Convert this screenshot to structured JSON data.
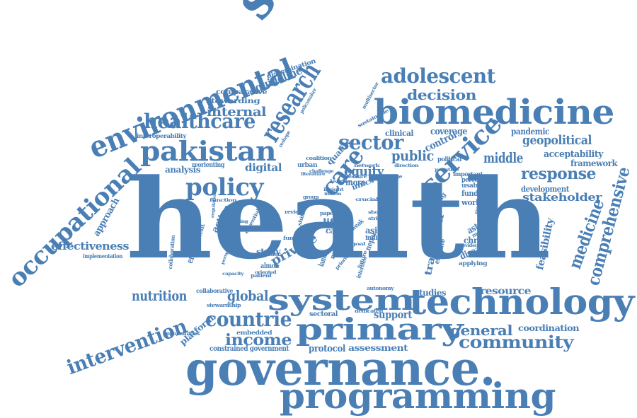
{
  "color": "#4a7fb5",
  "words": [
    {
      "text": "health"
    },
    {
      "text": "science"
    },
    {
      "text": "governance."
    },
    {
      "text": "programming"
    },
    {
      "text": "technology"
    },
    {
      "text": "biomedicine"
    },
    {
      "text": "system"
    },
    {
      "text": "primary"
    },
    {
      "text": "environmental"
    },
    {
      "text": "occupational"
    },
    {
      "text": "pakistan"
    },
    {
      "text": "healthcare"
    },
    {
      "text": "research"
    },
    {
      "text": "adolescent"
    },
    {
      "text": "decision"
    },
    {
      "text": "service"
    },
    {
      "text": "sector"
    },
    {
      "text": "policy"
    },
    {
      "text": "care"
    },
    {
      "text": "comprehensive"
    },
    {
      "text": "medicine"
    },
    {
      "text": "intervention"
    },
    {
      "text": "countrie"
    },
    {
      "text": "income"
    },
    {
      "text": "community"
    },
    {
      "text": "general"
    },
    {
      "text": "nutrition"
    },
    {
      "text": "global"
    },
    {
      "text": "response"
    },
    {
      "text": "middle"
    },
    {
      "text": "geopolitical"
    },
    {
      "text": "public"
    },
    {
      "text": "internal"
    },
    {
      "text": "guideline"
    },
    {
      "text": "effectiveness"
    },
    {
      "text": "approach"
    },
    {
      "text": "equity"
    },
    {
      "text": "digital"
    },
    {
      "text": "private"
    },
    {
      "text": "stakeholder"
    },
    {
      "text": "feasibility"
    },
    {
      "text": "transition"
    },
    {
      "text": "support"
    },
    {
      "text": "resource"
    },
    {
      "text": "coverage"
    },
    {
      "text": "control"
    },
    {
      "text": "pandemic"
    },
    {
      "text": "framework"
    },
    {
      "text": "acceptability"
    },
    {
      "text": "development"
    },
    {
      "text": "funding"
    },
    {
      "text": "worker"
    },
    {
      "text": "astana"
    },
    {
      "text": "chronic"
    },
    {
      "text": "disease"
    },
    {
      "text": "coordination"
    },
    {
      "text": "assessment"
    },
    {
      "text": "protocol"
    },
    {
      "text": "platform"
    },
    {
      "text": "analysis"
    },
    {
      "text": "engagement"
    },
    {
      "text": "action"
    },
    {
      "text": "stewarding"
    },
    {
      "text": "comparative"
    },
    {
      "text": "dissemination"
    },
    {
      "text": "interoperability"
    },
    {
      "text": "clinical"
    },
    {
      "text": "political"
    },
    {
      "text": "perceived"
    },
    {
      "text": "usability"
    },
    {
      "text": "important"
    },
    {
      "text": "study"
    },
    {
      "text": "almon"
    },
    {
      "text": "sectoral"
    },
    {
      "text": "studies"
    },
    {
      "text": "implementation"
    },
    {
      "text": "collaboration"
    },
    {
      "text": "collaborative"
    },
    {
      "text": "stewardship"
    },
    {
      "text": "opportunities"
    },
    {
      "text": "embedded"
    },
    {
      "text": "constrained government"
    },
    {
      "text": "reorienting"
    },
    {
      "text": "quality"
    },
    {
      "text": "urban"
    },
    {
      "text": "more"
    },
    {
      "text": "measure"
    },
    {
      "text": "imics"
    },
    {
      "text": "life"
    },
    {
      "text": "call"
    },
    {
      "text": "asia"
    },
    {
      "text": "india"
    },
    {
      "text": "nepal"
    },
    {
      "text": "lanka"
    },
    {
      "text": "effective"
    },
    {
      "text": "setting"
    },
    {
      "text": "making"
    },
    {
      "text": "applying"
    },
    {
      "text": "paper"
    },
    {
      "text": "provider"
    },
    {
      "text": "sustainable"
    },
    {
      "text": "multisector"
    },
    {
      "text": "policymaker"
    },
    {
      "text": "coalition"
    },
    {
      "text": "dedicated"
    },
    {
      "text": "building"
    },
    {
      "text": "reshape"
    },
    {
      "text": "patient"
    },
    {
      "text": "priorities"
    },
    {
      "text": "oriented"
    },
    {
      "text": "review"
    },
    {
      "text": "essential"
    },
    {
      "text": "perspective"
    },
    {
      "text": "literature"
    },
    {
      "text": "change"
    },
    {
      "text": "function"
    },
    {
      "text": "regulation"
    },
    {
      "text": "challenge"
    },
    {
      "text": "inform"
    },
    {
      "text": "group"
    },
    {
      "text": "autonomy"
    },
    {
      "text": "evidence"
    },
    {
      "text": "evaluation"
    },
    {
      "text": "shift"
    },
    {
      "text": "insight"
    },
    {
      "text": "shock"
    },
    {
      "text": "strive"
    },
    {
      "text": "future"
    },
    {
      "text": "network"
    },
    {
      "text": "direction"
    },
    {
      "text": "practice"
    },
    {
      "text": "interview"
    },
    {
      "text": "crucial"
    },
    {
      "text": "capacity"
    },
    {
      "text": "national"
    },
    {
      "text": "weak"
    },
    {
      "text": "goal"
    },
    {
      "text": "fund"
    },
    {
      "text": "leader"
    }
  ]
}
